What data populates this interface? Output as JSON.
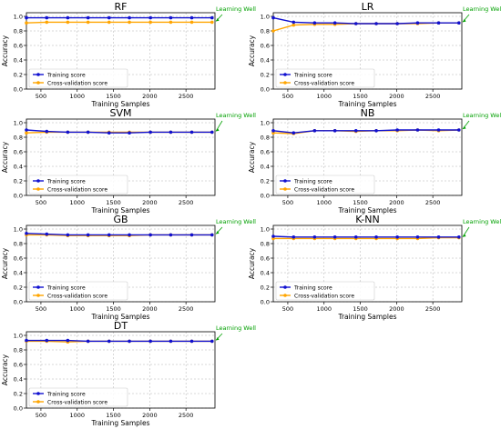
{
  "figure": {
    "axis_ylabel": "Accuracy",
    "axis_xlabel": "Training Samples",
    "annotation": "Learning Well",
    "legend": [
      "Training score",
      "Cross-validation score"
    ]
  },
  "colors": {
    "training": "#1010d0",
    "cv": "#ffa500",
    "annotation": "#00a000",
    "grid": "#b0b0b0"
  },
  "chart_data": [
    {
      "type": "line",
      "title": "RF",
      "x": [
        300,
        580,
        870,
        1150,
        1440,
        1720,
        2010,
        2290,
        2580,
        2860
      ],
      "series": [
        {
          "name": "Training score",
          "values": [
            0.98,
            0.98,
            0.98,
            0.98,
            0.98,
            0.98,
            0.98,
            0.98,
            0.98,
            0.98
          ]
        },
        {
          "name": "Cross-validation score",
          "values": [
            0.91,
            0.92,
            0.92,
            0.92,
            0.92,
            0.92,
            0.92,
            0.92,
            0.92,
            0.92
          ]
        }
      ],
      "xticks": [
        500,
        1000,
        1500,
        2000,
        2500
      ],
      "yticks": [
        0.0,
        0.2,
        0.4,
        0.6,
        0.8,
        1.0
      ],
      "xlim": [
        300,
        2900
      ],
      "ylim": [
        0,
        1.05
      ],
      "xlabel": "Training Samples",
      "ylabel": "Accuracy",
      "legend": "lower-left",
      "grid": true,
      "annotation": "Learning Well"
    },
    {
      "type": "line",
      "title": "LR",
      "x": [
        300,
        580,
        870,
        1150,
        1440,
        1720,
        2010,
        2290,
        2580,
        2860
      ],
      "series": [
        {
          "name": "Training score",
          "values": [
            0.98,
            0.92,
            0.91,
            0.91,
            0.9,
            0.9,
            0.9,
            0.91,
            0.91,
            0.91
          ]
        },
        {
          "name": "Cross-validation score",
          "values": [
            0.8,
            0.88,
            0.89,
            0.89,
            0.9,
            0.9,
            0.9,
            0.9,
            0.91,
            0.91
          ]
        }
      ],
      "xticks": [
        500,
        1000,
        1500,
        2000,
        2500
      ],
      "yticks": [
        0.0,
        0.2,
        0.4,
        0.6,
        0.8,
        1.0
      ],
      "xlim": [
        300,
        2900
      ],
      "ylim": [
        0,
        1.05
      ],
      "xlabel": "Training Samples",
      "ylabel": "Accuracy",
      "legend": "lower-left",
      "grid": true,
      "annotation": "Learning Well"
    },
    {
      "type": "line",
      "title": "SVM",
      "x": [
        300,
        580,
        870,
        1150,
        1440,
        1720,
        2010,
        2290,
        2580,
        2860
      ],
      "series": [
        {
          "name": "Training score",
          "values": [
            0.9,
            0.88,
            0.87,
            0.87,
            0.86,
            0.86,
            0.87,
            0.87,
            0.87,
            0.87
          ]
        },
        {
          "name": "Cross-validation score",
          "values": [
            0.86,
            0.87,
            0.87,
            0.87,
            0.87,
            0.87,
            0.87,
            0.87,
            0.87,
            0.87
          ]
        }
      ],
      "xticks": [
        500,
        1000,
        1500,
        2000,
        2500
      ],
      "yticks": [
        0.0,
        0.2,
        0.4,
        0.6,
        0.8,
        1.0
      ],
      "xlim": [
        300,
        2900
      ],
      "ylim": [
        0,
        1.05
      ],
      "xlabel": "Training Samples",
      "ylabel": "Accuracy",
      "legend": "lower-left",
      "grid": true,
      "annotation": "Learning Well"
    },
    {
      "type": "line",
      "title": "NB",
      "x": [
        300,
        580,
        870,
        1150,
        1440,
        1720,
        2010,
        2290,
        2580,
        2860
      ],
      "series": [
        {
          "name": "Training score",
          "values": [
            0.89,
            0.86,
            0.89,
            0.89,
            0.89,
            0.89,
            0.9,
            0.9,
            0.9,
            0.9
          ]
        },
        {
          "name": "Cross-validation score",
          "values": [
            0.86,
            0.85,
            0.89,
            0.89,
            0.88,
            0.89,
            0.89,
            0.9,
            0.89,
            0.9
          ]
        }
      ],
      "xticks": [
        500,
        1000,
        1500,
        2000,
        2500
      ],
      "yticks": [
        0.0,
        0.2,
        0.4,
        0.6,
        0.8,
        1.0
      ],
      "xlim": [
        300,
        2900
      ],
      "ylim": [
        0,
        1.05
      ],
      "xlabel": "Training Samples",
      "ylabel": "Accuracy",
      "legend": "lower-left",
      "grid": true,
      "annotation": "Learning Well"
    },
    {
      "type": "line",
      "title": "GB",
      "x": [
        300,
        580,
        870,
        1150,
        1440,
        1720,
        2010,
        2290,
        2580,
        2860
      ],
      "series": [
        {
          "name": "Training score",
          "values": [
            0.94,
            0.93,
            0.92,
            0.92,
            0.92,
            0.92,
            0.92,
            0.92,
            0.92,
            0.92
          ]
        },
        {
          "name": "Cross-validation score",
          "values": [
            0.92,
            0.92,
            0.91,
            0.91,
            0.91,
            0.91,
            0.92,
            0.92,
            0.92,
            0.92
          ]
        }
      ],
      "xticks": [
        500,
        1000,
        1500,
        2000,
        2500
      ],
      "yticks": [
        0.0,
        0.2,
        0.4,
        0.6,
        0.8,
        1.0
      ],
      "xlim": [
        300,
        2900
      ],
      "ylim": [
        0,
        1.05
      ],
      "xlabel": "Training Samples",
      "ylabel": "Accuracy",
      "legend": "lower-left",
      "grid": true,
      "annotation": "Learning Well"
    },
    {
      "type": "line",
      "title": "K-NN",
      "x": [
        300,
        580,
        870,
        1150,
        1440,
        1720,
        2010,
        2290,
        2580,
        2860
      ],
      "series": [
        {
          "name": "Training score",
          "values": [
            0.9,
            0.89,
            0.89,
            0.89,
            0.89,
            0.89,
            0.89,
            0.89,
            0.89,
            0.89
          ]
        },
        {
          "name": "Cross-validation score",
          "values": [
            0.87,
            0.87,
            0.87,
            0.87,
            0.87,
            0.87,
            0.87,
            0.87,
            0.88,
            0.88
          ]
        }
      ],
      "xticks": [
        500,
        1000,
        1500,
        2000,
        2500
      ],
      "yticks": [
        0.0,
        0.2,
        0.4,
        0.6,
        0.8,
        1.0
      ],
      "xlim": [
        300,
        2900
      ],
      "ylim": [
        0,
        1.05
      ],
      "xlabel": "Training Samples",
      "ylabel": "Accuracy",
      "legend": "lower-left",
      "grid": true,
      "annotation": "Learning Well"
    },
    {
      "type": "line",
      "title": "DT",
      "x": [
        300,
        580,
        870,
        1150,
        1440,
        1720,
        2010,
        2290,
        2580,
        2860
      ],
      "series": [
        {
          "name": "Training score",
          "values": [
            0.93,
            0.93,
            0.93,
            0.92,
            0.92,
            0.92,
            0.92,
            0.92,
            0.92,
            0.92
          ]
        },
        {
          "name": "Cross-validation score",
          "values": [
            0.92,
            0.92,
            0.91,
            0.92,
            0.92,
            0.92,
            0.92,
            0.92,
            0.92,
            0.92
          ]
        }
      ],
      "xticks": [
        500,
        1000,
        1500,
        2000,
        2500
      ],
      "yticks": [
        0.0,
        0.2,
        0.4,
        0.6,
        0.8,
        1.0
      ],
      "xlim": [
        300,
        2900
      ],
      "ylim": [
        0,
        1.05
      ],
      "xlabel": "Training Samples",
      "ylabel": "Accuracy",
      "legend": "lower-left",
      "grid": true,
      "annotation": "Learning Well"
    }
  ]
}
